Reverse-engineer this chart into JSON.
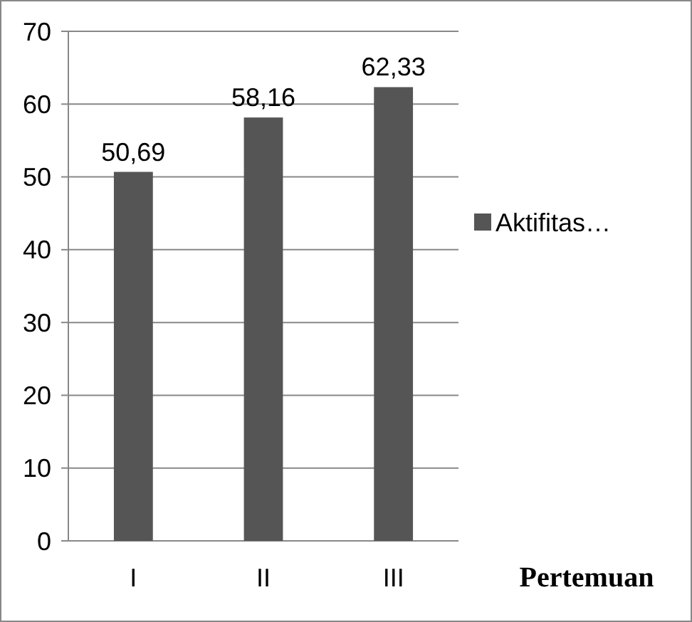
{
  "chart_data": {
    "type": "bar",
    "xlabel": "Pertemuan",
    "categories": [
      "I",
      "II",
      "III"
    ],
    "series": [
      {
        "name": "Aktifitas…",
        "color": "#555555",
        "values": [
          50.69,
          58.16,
          62.33
        ],
        "value_labels": [
          "50,69",
          "58,16",
          "62,33"
        ]
      }
    ],
    "ylim": [
      0,
      70
    ],
    "yticks": [
      0,
      10,
      20,
      30,
      40,
      50,
      60,
      70
    ],
    "grid": "y",
    "legend": "right"
  }
}
